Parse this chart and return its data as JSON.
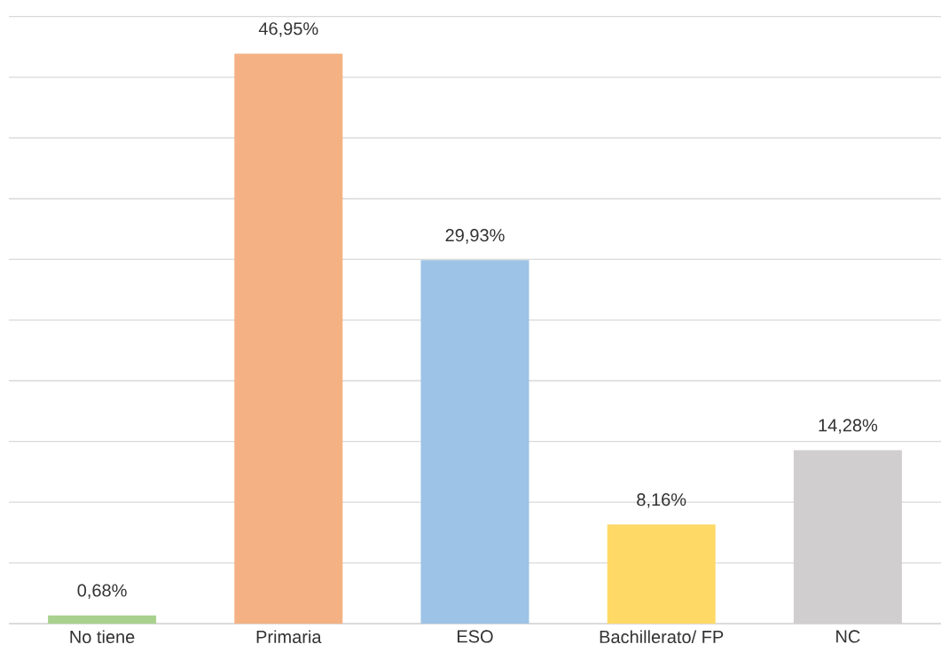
{
  "chart_data": {
    "type": "bar",
    "categories": [
      "No tiene",
      "Primaria",
      "ESO",
      "Bachillerato/ FP",
      "NC"
    ],
    "values": [
      0.68,
      46.95,
      29.93,
      8.16,
      14.28
    ],
    "value_labels": [
      "0,68%",
      "46,95%",
      "29,93%",
      "8,16%",
      "14,28%"
    ],
    "colors": [
      "#a9d18e",
      "#f4b183",
      "#9dc3e6",
      "#ffd966",
      "#d0cece"
    ],
    "tick_labels": "x",
    "grid": "y"
  }
}
